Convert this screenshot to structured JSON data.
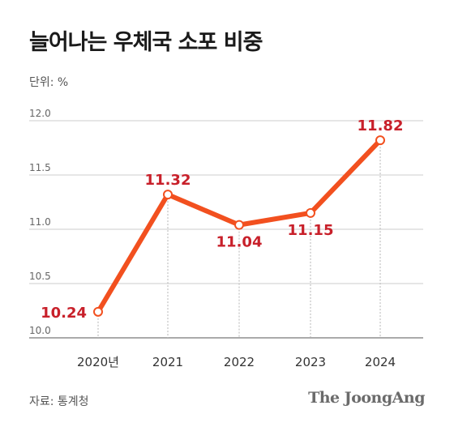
{
  "title": "늘어나는 우체국 소포 비중",
  "unit_label": "단위: %",
  "source": "자료: 통계청",
  "brand": "The JoongAng",
  "colors": {
    "line": "#f2501f",
    "label": "#c8202a",
    "grid": "#cccccc",
    "axis": "#555555"
  },
  "chart_data": {
    "type": "line",
    "categories": [
      "2020년",
      "2021",
      "2022",
      "2023",
      "2024"
    ],
    "values": [
      10.24,
      11.32,
      11.04,
      11.15,
      11.82
    ],
    "value_labels": [
      "10.24",
      "11.32",
      "11.04",
      "11.15",
      "11.82"
    ],
    "yticks": [
      "10.0",
      "10.5",
      "11.0",
      "11.5",
      "12.0"
    ],
    "ytick_values": [
      10.0,
      10.5,
      11.0,
      11.5,
      12.0
    ],
    "ylim": [
      10.0,
      12.0
    ],
    "ylabel": "",
    "xlabel": "",
    "grid": true,
    "label_placement": [
      "left",
      "above",
      "below",
      "below",
      "above"
    ]
  }
}
